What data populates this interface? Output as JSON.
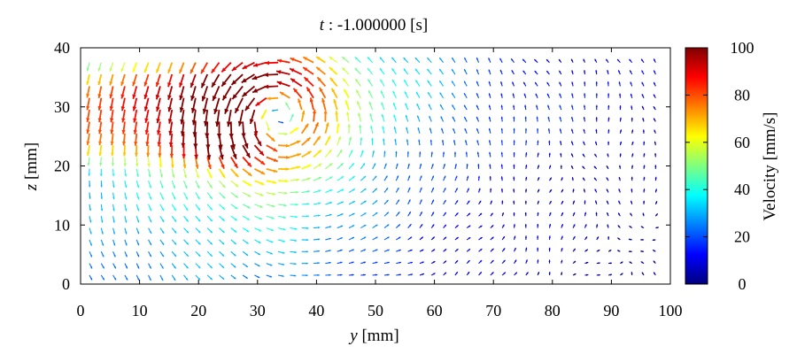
{
  "chart_data": {
    "type": "quiver",
    "title_var": "t",
    "title_value": " : -1.000000 [s]",
    "xlabel_var": "y",
    "xlabel_unit": " [mm]",
    "ylabel_var": "z",
    "ylabel_unit": " [mm]",
    "xlim": [
      0,
      100
    ],
    "ylim": [
      0,
      40
    ],
    "xticks": [
      "0",
      "10",
      "20",
      "30",
      "40",
      "50",
      "60",
      "70",
      "80",
      "90",
      "100"
    ],
    "yticks": [
      "0",
      "10",
      "20",
      "30",
      "40"
    ],
    "grid": false,
    "colorbar": {
      "label": "Velocity [mm/s]",
      "range": [
        0,
        100
      ],
      "ticks": [
        "0",
        "20",
        "40",
        "60",
        "80",
        "100"
      ],
      "colormap": "jet",
      "colors": [
        "#00007f",
        "#0000ff",
        "#007fff",
        "#00ffff",
        "#7fff7f",
        "#ffff00",
        "#ff7f00",
        "#ff0000",
        "#7f0000"
      ]
    },
    "field": {
      "grid_y_start": 1.5,
      "grid_y_step": 2.0,
      "grid_y_count": 49,
      "grid_z_start": 1.5,
      "grid_z_step": 2.0,
      "grid_z_count": 19,
      "vortex_center": [
        33,
        29
      ],
      "vortex_core_radius": 5.5,
      "vortex_peak_velocity": 100,
      "upper_flow_region_z": [
        21,
        38
      ],
      "upper_flow_velocity_left": 55,
      "background_velocity": 10
    }
  }
}
